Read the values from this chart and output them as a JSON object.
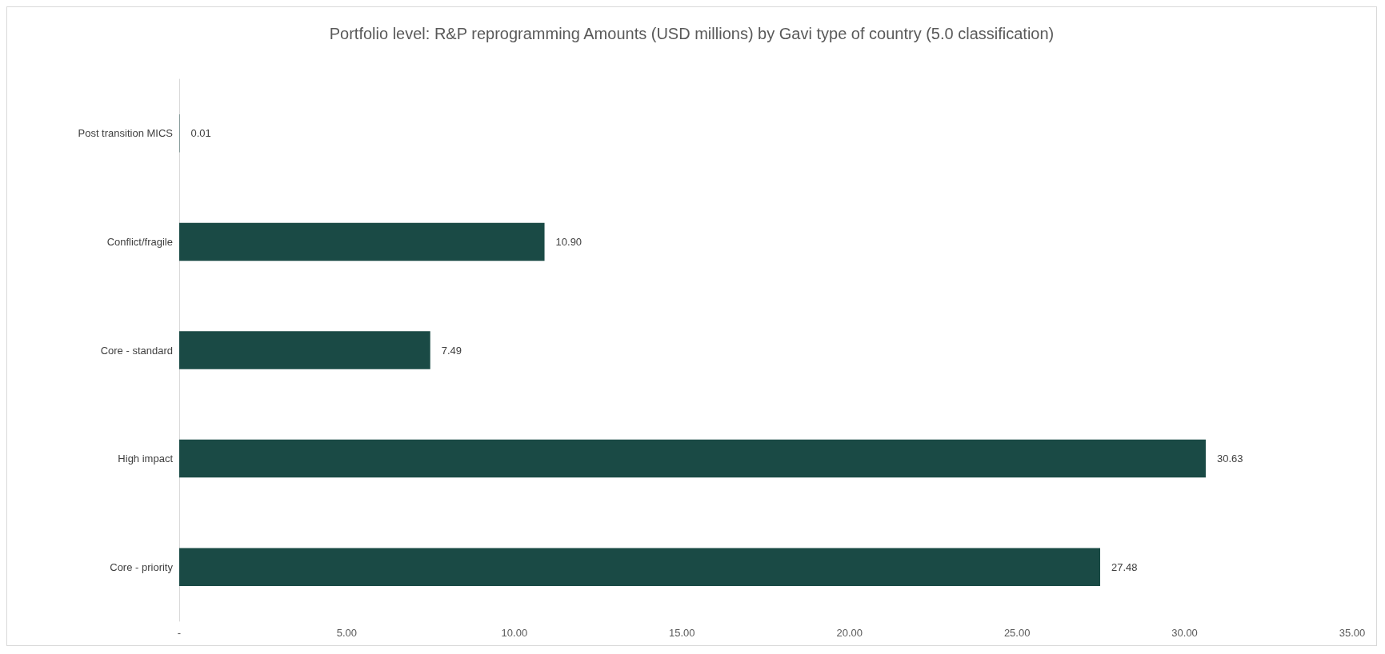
{
  "chart_data": {
    "type": "bar",
    "orientation": "horizontal",
    "title": "Portfolio level: R&P reprogramming Amounts (USD millions) by Gavi type of country (5.0 classification)",
    "categories": [
      "Post transition MICS",
      "Conflict/fragile",
      "Core - standard",
      "High impact",
      "Core - priority"
    ],
    "values": [
      0.01,
      10.9,
      7.49,
      30.63,
      27.48
    ],
    "value_labels": [
      "0.01",
      "10.90",
      "7.49",
      "30.63",
      "27.48"
    ],
    "color": "#1a4a45",
    "xlim": [
      0,
      35
    ],
    "xticks": [
      {
        "value": 0,
        "label": "-"
      },
      {
        "value": 5,
        "label": "5.00"
      },
      {
        "value": 10,
        "label": "10.00"
      },
      {
        "value": 15,
        "label": "15.00"
      },
      {
        "value": 20,
        "label": "20.00"
      },
      {
        "value": 25,
        "label": "25.00"
      },
      {
        "value": 30,
        "label": "30.00"
      },
      {
        "value": 35,
        "label": "35.00"
      }
    ],
    "grid": false
  }
}
